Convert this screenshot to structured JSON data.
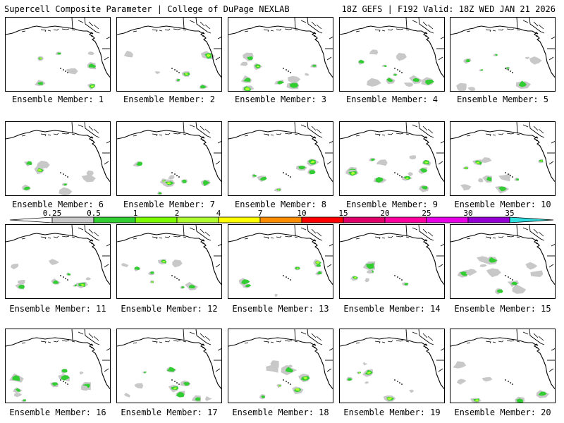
{
  "header": {
    "left_title": "Supercell Composite Parameter | College of DuPage NEXLAB",
    "right_title": "18Z GEFS | F192 Valid: 18Z WED JAN 21 2026"
  },
  "colorbar": {
    "labels": [
      "0.25",
      "0.5",
      "1",
      "2",
      "4",
      "7",
      "10",
      "15",
      "20",
      "25",
      "30",
      "35"
    ],
    "colors": [
      "#c8c8c8",
      "#32cd32",
      "#7cfc00",
      "#adff2f",
      "#ffff00",
      "#ff8c00",
      "#ff0000",
      "#e0006a",
      "#ff00a0",
      "#e600e6",
      "#9400d3",
      "#b080ff",
      "#30e0e0"
    ]
  },
  "panels": [
    {
      "label": "Ensemble Member: 1"
    },
    {
      "label": "Ensemble Member: 2"
    },
    {
      "label": "Ensemble Member: 3"
    },
    {
      "label": "Ensemble Member: 4"
    },
    {
      "label": "Ensemble Member: 5"
    },
    {
      "label": "Ensemble Member: 6"
    },
    {
      "label": "Ensemble Member: 7"
    },
    {
      "label": "Ensemble Member: 8"
    },
    {
      "label": "Ensemble Member: 9"
    },
    {
      "label": "Ensemble Member: 10"
    },
    {
      "label": "Ensemble Member: 11"
    },
    {
      "label": "Ensemble Member: 12"
    },
    {
      "label": "Ensemble Member: 13"
    },
    {
      "label": "Ensemble Member: 14"
    },
    {
      "label": "Ensemble Member: 15"
    },
    {
      "label": "Ensemble Member: 16"
    },
    {
      "label": "Ensemble Member: 17"
    },
    {
      "label": "Ensemble Member: 18"
    },
    {
      "label": "Ensemble Member: 19"
    },
    {
      "label": "Ensemble Member: 20"
    }
  ]
}
